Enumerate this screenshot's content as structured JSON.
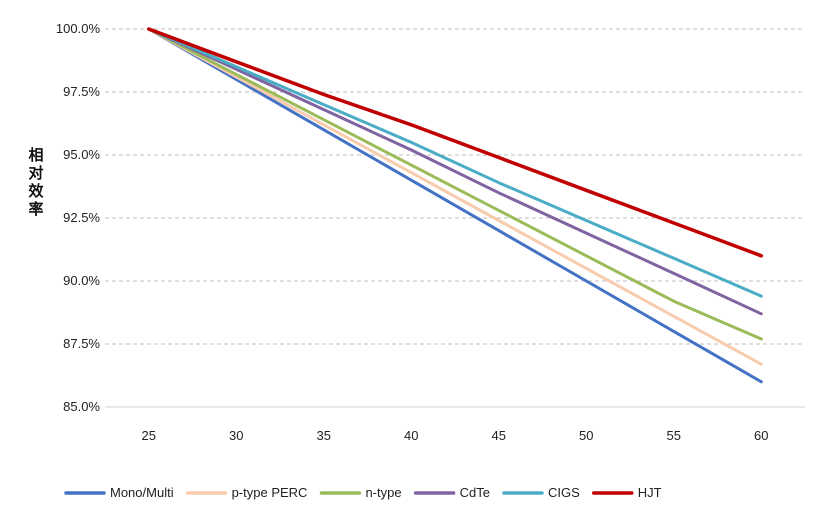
{
  "chart_data": {
    "type": "line",
    "title": "",
    "xlabel": "",
    "ylabel": "相对效率",
    "x": [
      25,
      30,
      35,
      40,
      45,
      50,
      55,
      60
    ],
    "x_tick_labels": [
      "25",
      "30",
      "35",
      "40",
      "45",
      "50",
      "55",
      "60"
    ],
    "ylim": [
      85.0,
      100.0
    ],
    "y_ticks": [
      85.0,
      87.5,
      90.0,
      92.5,
      95.0,
      97.5,
      100.0
    ],
    "y_tick_labels": [
      "85.0%",
      "87.5%",
      "90.0%",
      "92.5%",
      "95.0%",
      "97.5%",
      "100.0%"
    ],
    "grid": "horizontal dashed",
    "legend_position": "bottom",
    "series": [
      {
        "name": "Mono/Multi",
        "color": "#4472c4",
        "values": [
          100.0,
          98.0,
          96.0,
          94.0,
          92.0,
          90.0,
          88.0,
          86.0
        ]
      },
      {
        "name": "p-type PERC",
        "color": "#f8cbad",
        "values": [
          100.0,
          98.1,
          96.2,
          94.3,
          92.4,
          90.5,
          88.6,
          86.7
        ]
      },
      {
        "name": "n-type",
        "color": "#9bbb59",
        "values": [
          100.0,
          98.2,
          96.4,
          94.6,
          92.8,
          91.0,
          89.2,
          87.7
        ]
      },
      {
        "name": "CdTe",
        "color": "#8064a2",
        "values": [
          100.0,
          98.4,
          96.8,
          95.2,
          93.5,
          91.9,
          90.3,
          88.7
        ]
      },
      {
        "name": "CIGS",
        "color": "#4bacc6",
        "values": [
          100.0,
          98.5,
          97.0,
          95.5,
          93.9,
          92.4,
          90.9,
          89.4
        ]
      },
      {
        "name": "HJT",
        "color": "#c00000",
        "values": [
          100.0,
          98.7,
          97.4,
          96.2,
          94.9,
          93.6,
          92.3,
          91.0
        ]
      }
    ]
  }
}
